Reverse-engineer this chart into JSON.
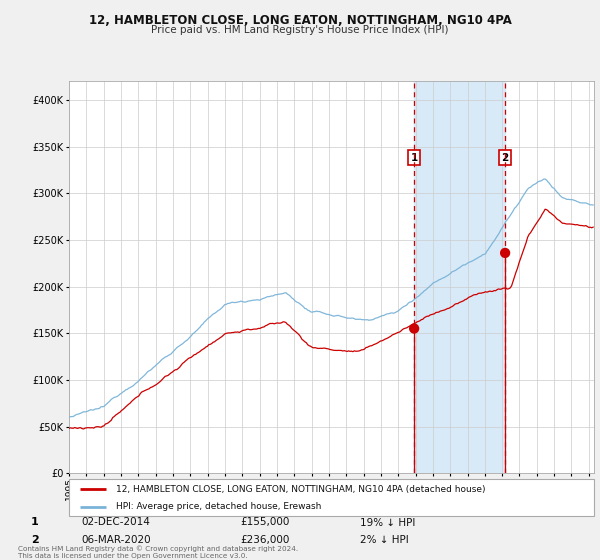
{
  "title1": "12, HAMBLETON CLOSE, LONG EATON, NOTTINGHAM, NG10 4PA",
  "title2": "Price paid vs. HM Land Registry's House Price Index (HPI)",
  "legend_line1": "12, HAMBLETON CLOSE, LONG EATON, NOTTINGHAM, NG10 4PA (detached house)",
  "legend_line2": "HPI: Average price, detached house, Erewash",
  "annotation1_label": "1",
  "annotation1_date": "02-DEC-2014",
  "annotation1_price": "£155,000",
  "annotation1_hpi": "19% ↓ HPI",
  "annotation2_label": "2",
  "annotation2_date": "06-MAR-2020",
  "annotation2_price": "£236,000",
  "annotation2_hpi": "2% ↓ HPI",
  "footnote": "Contains HM Land Registry data © Crown copyright and database right 2024.\nThis data is licensed under the Open Government Licence v3.0.",
  "hpi_color": "#7ab3d8",
  "price_color": "#cc0000",
  "point_color": "#cc0000",
  "shading_color": "#d8eaf7",
  "dashed_color": "#cc0000",
  "background_color": "#f0f0f0",
  "plot_bg_color": "#ffffff",
  "grid_color": "#cccccc",
  "ylim": [
    0,
    420000
  ],
  "yticks": [
    0,
    50000,
    100000,
    150000,
    200000,
    250000,
    300000,
    350000,
    400000
  ],
  "purchase1_year": 2014.92,
  "purchase1_value": 155000,
  "purchase2_year": 2020.17,
  "purchase2_value": 236000,
  "xmin": 1995,
  "xmax": 2025.3
}
